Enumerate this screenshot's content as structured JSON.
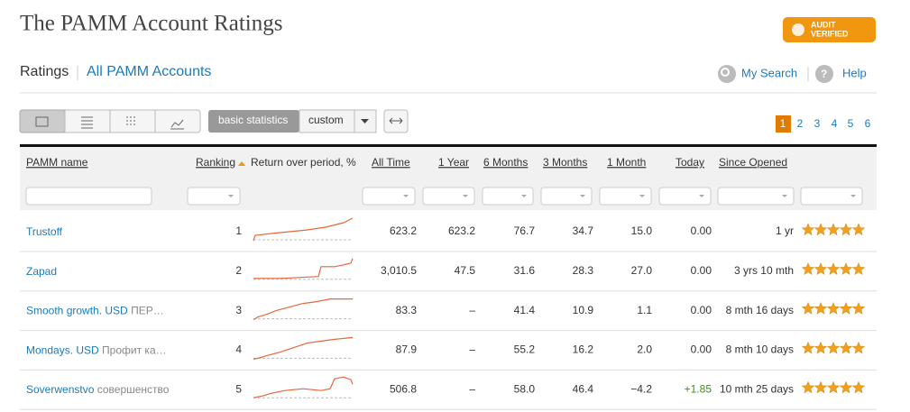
{
  "header": {
    "title": "The PAMM Account Ratings",
    "badge": [
      "AUDIT",
      "VERIFIED"
    ]
  },
  "nav": {
    "tabs": [
      "Ratings",
      "All PAMM Accounts"
    ],
    "links": [
      "My Search",
      "Help"
    ]
  },
  "toolbar": {
    "modes": [
      "basic statistics",
      "custom"
    ],
    "pages": [
      "1",
      "2",
      "3",
      "4",
      "5",
      "6"
    ]
  },
  "table": {
    "columns": [
      "PAMM name",
      "Ranking",
      "Return over period, %",
      "All Time",
      "1 Year",
      "6 Months",
      "3 Months",
      "1 Month",
      "Today",
      "Since Opened"
    ],
    "rows": [
      {
        "name": "Trustoff",
        "ranking": "1",
        "all_time": "623.2",
        "year": "623.2",
        "six_months": "76.7",
        "three_months": "34.7",
        "month": "15.0",
        "today": "0.00",
        "since_opened": "1 yr"
      },
      {
        "name": "Zapad",
        "ranking": "2",
        "all_time": "3,010.5",
        "year": "47.5",
        "six_months": "31.6",
        "three_months": "28.3",
        "month": "27.0",
        "today": "0.00",
        "since_opened": "3 yrs 10 mth"
      },
      {
        "name": "Smooth growth. USD",
        "note": "ПЕР…",
        "ranking": "3",
        "all_time": "83.3",
        "year": "–",
        "six_months": "41.4",
        "three_months": "10.9",
        "month": "1.1",
        "today": "0.00",
        "since_opened": "8 mth 16 days"
      },
      {
        "name": "Mondays. USD",
        "note": "Профит ка…",
        "ranking": "4",
        "all_time": "87.9",
        "year": "–",
        "six_months": "55.2",
        "three_months": "16.2",
        "month": "2.0",
        "today": "0.00",
        "since_opened": "8 mth 10 days"
      },
      {
        "name": "Soverwenstvo",
        "note": "совершенство",
        "ranking": "5",
        "all_time": "506.8",
        "year": "–",
        "six_months": "58.0",
        "three_months": "46.4",
        "month": "−4.2",
        "today": "+1.85",
        "since_opened": "10 mth 25 days"
      }
    ]
  }
}
